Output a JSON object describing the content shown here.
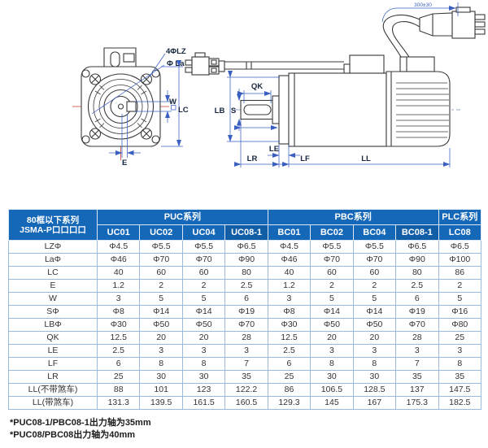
{
  "colors": {
    "header_bg": "#1568b8",
    "header_highlight": "#115da6",
    "grid": "#9db9d9",
    "dimension": "#3a5fc0",
    "centerline": "#c0392b"
  },
  "diagram": {
    "front_view": {
      "bolt_hole_label": "4ΦLZ",
      "pilot_label": "Φ La",
      "key_width_label": "W",
      "frame_label": "LC",
      "key_offset_label": "E"
    },
    "side_view": {
      "key_length_label": "QK",
      "shaft_label": "S",
      "boss_label": "LB",
      "le_label": "LE",
      "lr_label": "LR",
      "lf_label": "LF",
      "ll_label": "LL",
      "cable_length_label": "300±30"
    }
  },
  "table": {
    "corner_title_line1": "80框以下系列",
    "corner_title_line2": "JSMA-P口口口口",
    "groups": [
      {
        "label": "PUC系列",
        "span": 4
      },
      {
        "label": "PBC系列",
        "span": 4
      },
      {
        "label": "PLC系列",
        "span": 1
      }
    ],
    "columns": [
      "UC01",
      "UC02",
      "UC04",
      "UC08-1",
      "BC01",
      "BC02",
      "BC04",
      "BC08-1",
      "LC08"
    ],
    "highlight_columns": [
      "UC08-1",
      "BC08-1"
    ],
    "rows": [
      {
        "label": "LZΦ",
        "values": [
          "Φ4.5",
          "Φ5.5",
          "Φ5.5",
          "Φ6.5",
          "Φ4.5",
          "Φ5.5",
          "Φ5.5",
          "Φ6.5",
          "Φ6.5"
        ]
      },
      {
        "label": "LaΦ",
        "values": [
          "Φ46",
          "Φ70",
          "Φ70",
          "Φ90",
          "Φ46",
          "Φ70",
          "Φ70",
          "Φ90",
          "Φ100"
        ]
      },
      {
        "label": "LC",
        "values": [
          "40",
          "60",
          "60",
          "80",
          "40",
          "60",
          "60",
          "80",
          "86"
        ]
      },
      {
        "label": "E",
        "values": [
          "1.2",
          "2",
          "2",
          "2.5",
          "1.2",
          "2",
          "2",
          "2.5",
          "2"
        ]
      },
      {
        "label": "W",
        "values": [
          "3",
          "5",
          "5",
          "6",
          "3",
          "5",
          "5",
          "6",
          "5"
        ]
      },
      {
        "label": "SΦ",
        "values": [
          "Φ8",
          "Φ14",
          "Φ14",
          "Φ19",
          "Φ8",
          "Φ14",
          "Φ14",
          "Φ19",
          "Φ16"
        ]
      },
      {
        "label": "LBΦ",
        "values": [
          "Φ30",
          "Φ50",
          "Φ50",
          "Φ70",
          "Φ30",
          "Φ50",
          "Φ50",
          "Φ70",
          "Φ80"
        ]
      },
      {
        "label": "QK",
        "values": [
          "12.5",
          "20",
          "20",
          "28",
          "12.5",
          "20",
          "20",
          "28",
          "25"
        ]
      },
      {
        "label": "LE",
        "values": [
          "2.5",
          "3",
          "3",
          "3",
          "2.5",
          "3",
          "3",
          "3",
          "3"
        ]
      },
      {
        "label": "LF",
        "values": [
          "6",
          "8",
          "8",
          "7",
          "6",
          "8",
          "8",
          "7",
          "8"
        ]
      },
      {
        "label": "LR",
        "values": [
          "25",
          "30",
          "30",
          "35",
          "25",
          "30",
          "30",
          "35",
          "35"
        ]
      },
      {
        "label": "LL(不带煞车)",
        "values": [
          "88",
          "101",
          "123",
          "122.2",
          "86",
          "106.5",
          "128.5",
          "137",
          "147.5"
        ]
      },
      {
        "label": "LL(带煞车)",
        "values": [
          "131.3",
          "139.5",
          "161.5",
          "160.5",
          "129.3",
          "145",
          "167",
          "175.3",
          "182.5"
        ]
      }
    ]
  },
  "footnotes": [
    "*PUC08-1/PBC08-1出力轴为35mm",
    "*PUC08/PBC08出力轴为40mm"
  ]
}
